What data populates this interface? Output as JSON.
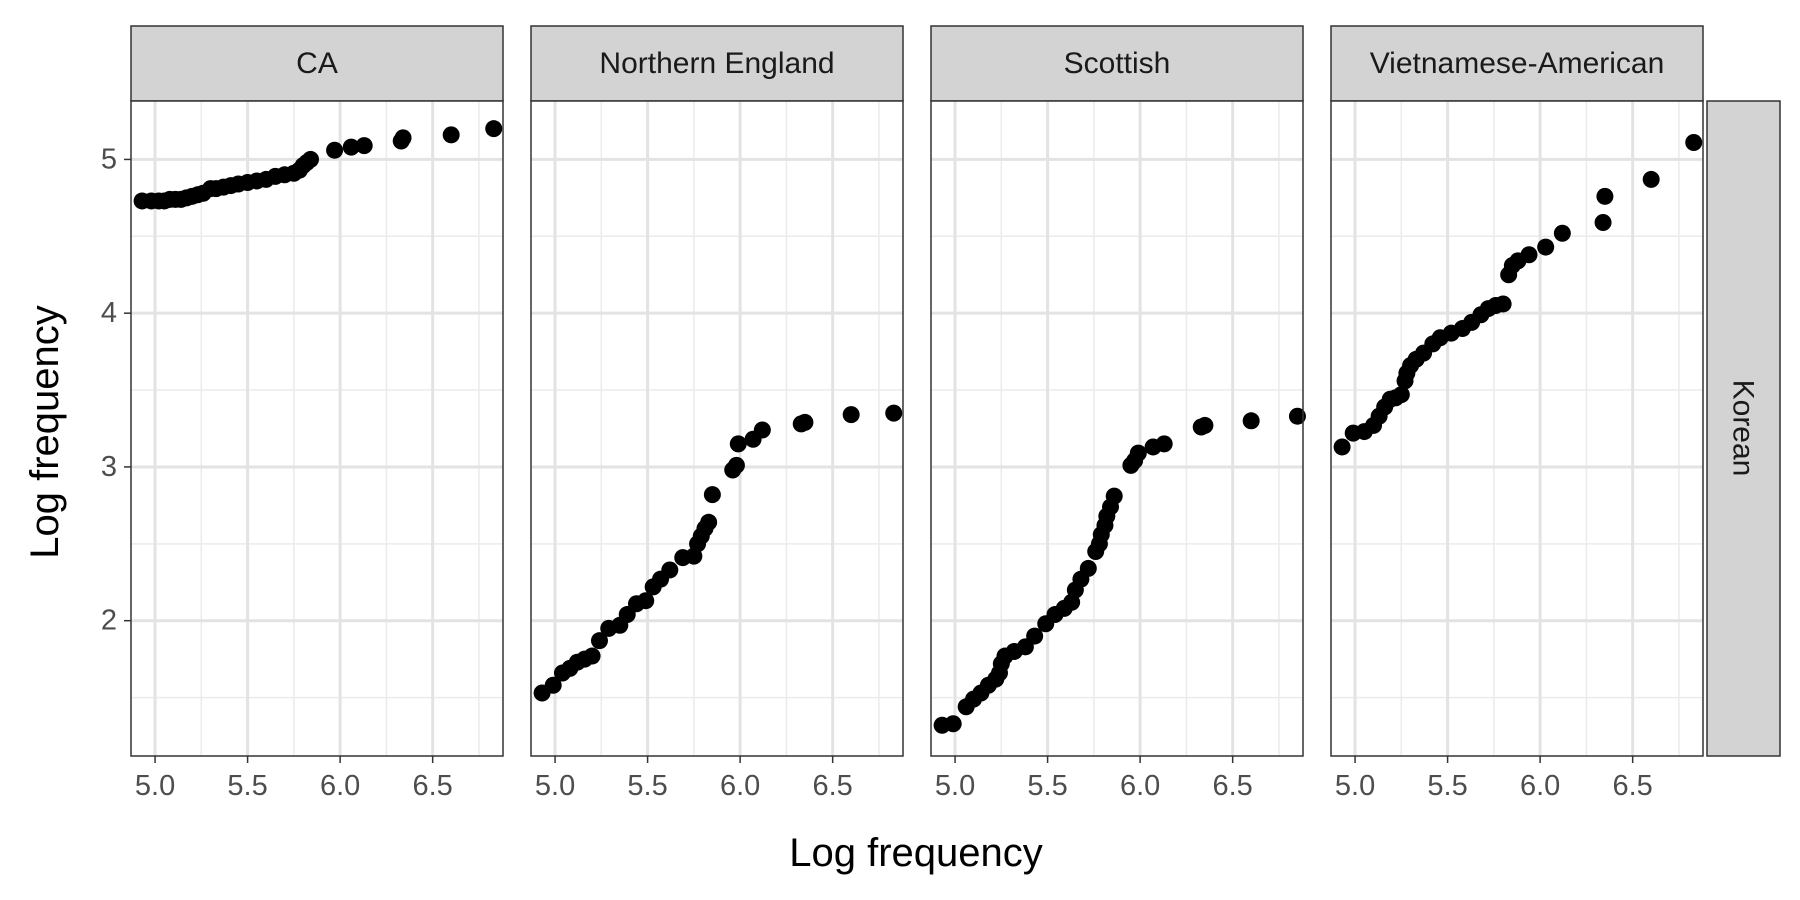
{
  "chart_data": {
    "type": "scatter",
    "xlabel": "Log frequency",
    "ylabel": "Log frequency",
    "xlim": [
      4.87,
      6.88
    ],
    "ylim": [
      1.12,
      5.38
    ],
    "x_ticks": [
      "5.0",
      "5.5",
      "6.0",
      "6.5"
    ],
    "x_tick_values": [
      5.0,
      5.5,
      6.0,
      6.5
    ],
    "y_ticks": [
      "2",
      "3",
      "4",
      "5"
    ],
    "y_tick_values": [
      2,
      3,
      4,
      5
    ],
    "grid": true,
    "facet_row_label": "Korean",
    "panels": [
      {
        "label": "CA",
        "points": [
          [
            4.93,
            4.73
          ],
          [
            4.98,
            4.73
          ],
          [
            5.02,
            4.73
          ],
          [
            5.05,
            4.73
          ],
          [
            5.08,
            4.74
          ],
          [
            5.11,
            4.74
          ],
          [
            5.14,
            4.74
          ],
          [
            5.17,
            4.75
          ],
          [
            5.2,
            4.76
          ],
          [
            5.23,
            4.77
          ],
          [
            5.26,
            4.78
          ],
          [
            5.3,
            4.81
          ],
          [
            5.33,
            4.81
          ],
          [
            5.37,
            4.82
          ],
          [
            5.41,
            4.83
          ],
          [
            5.45,
            4.84
          ],
          [
            5.5,
            4.85
          ],
          [
            5.55,
            4.86
          ],
          [
            5.6,
            4.87
          ],
          [
            5.65,
            4.89
          ],
          [
            5.7,
            4.9
          ],
          [
            5.75,
            4.91
          ],
          [
            5.78,
            4.93
          ],
          [
            5.8,
            4.96
          ],
          [
            5.82,
            4.98
          ],
          [
            5.84,
            5.0
          ],
          [
            5.97,
            5.06
          ],
          [
            6.06,
            5.08
          ],
          [
            6.13,
            5.09
          ],
          [
            6.33,
            5.12
          ],
          [
            6.34,
            5.14
          ],
          [
            6.6,
            5.16
          ],
          [
            6.83,
            5.2
          ]
        ]
      },
      {
        "label": "Northern England",
        "points": [
          [
            4.93,
            1.53
          ],
          [
            4.99,
            1.58
          ],
          [
            5.04,
            1.66
          ],
          [
            5.08,
            1.69
          ],
          [
            5.12,
            1.73
          ],
          [
            5.16,
            1.75
          ],
          [
            5.2,
            1.77
          ],
          [
            5.24,
            1.87
          ],
          [
            5.29,
            1.95
          ],
          [
            5.35,
            1.97
          ],
          [
            5.39,
            2.04
          ],
          [
            5.44,
            2.11
          ],
          [
            5.49,
            2.13
          ],
          [
            5.53,
            2.22
          ],
          [
            5.57,
            2.27
          ],
          [
            5.62,
            2.33
          ],
          [
            5.69,
            2.41
          ],
          [
            5.75,
            2.42
          ],
          [
            5.77,
            2.5
          ],
          [
            5.79,
            2.55
          ],
          [
            5.81,
            2.6
          ],
          [
            5.83,
            2.64
          ],
          [
            5.85,
            2.82
          ],
          [
            5.96,
            2.98
          ],
          [
            5.98,
            3.01
          ],
          [
            5.99,
            3.15
          ],
          [
            6.07,
            3.18
          ],
          [
            6.12,
            3.24
          ],
          [
            6.33,
            3.28
          ],
          [
            6.35,
            3.29
          ],
          [
            6.6,
            3.34
          ],
          [
            6.83,
            3.35
          ]
        ]
      },
      {
        "label": "Scottish",
        "points": [
          [
            4.93,
            1.32
          ],
          [
            4.99,
            1.33
          ],
          [
            5.06,
            1.44
          ],
          [
            5.1,
            1.49
          ],
          [
            5.14,
            1.53
          ],
          [
            5.18,
            1.58
          ],
          [
            5.22,
            1.62
          ],
          [
            5.24,
            1.66
          ],
          [
            5.25,
            1.72
          ],
          [
            5.27,
            1.77
          ],
          [
            5.32,
            1.8
          ],
          [
            5.38,
            1.83
          ],
          [
            5.43,
            1.9
          ],
          [
            5.49,
            1.98
          ],
          [
            5.54,
            2.04
          ],
          [
            5.59,
            2.08
          ],
          [
            5.63,
            2.12
          ],
          [
            5.65,
            2.2
          ],
          [
            5.68,
            2.27
          ],
          [
            5.72,
            2.34
          ],
          [
            5.76,
            2.45
          ],
          [
            5.78,
            2.5
          ],
          [
            5.79,
            2.56
          ],
          [
            5.81,
            2.62
          ],
          [
            5.82,
            2.68
          ],
          [
            5.84,
            2.74
          ],
          [
            5.86,
            2.81
          ],
          [
            5.95,
            3.01
          ],
          [
            5.97,
            3.04
          ],
          [
            5.99,
            3.09
          ],
          [
            6.07,
            3.13
          ],
          [
            6.13,
            3.15
          ],
          [
            6.33,
            3.26
          ],
          [
            6.35,
            3.27
          ],
          [
            6.6,
            3.3
          ],
          [
            6.85,
            3.33
          ]
        ]
      },
      {
        "label": "Vietnamese-American",
        "points": [
          [
            4.93,
            3.13
          ],
          [
            4.99,
            3.22
          ],
          [
            5.05,
            3.23
          ],
          [
            5.1,
            3.27
          ],
          [
            5.13,
            3.33
          ],
          [
            5.16,
            3.39
          ],
          [
            5.19,
            3.44
          ],
          [
            5.22,
            3.45
          ],
          [
            5.25,
            3.47
          ],
          [
            5.27,
            3.56
          ],
          [
            5.28,
            3.61
          ],
          [
            5.3,
            3.66
          ],
          [
            5.33,
            3.7
          ],
          [
            5.37,
            3.74
          ],
          [
            5.42,
            3.8
          ],
          [
            5.46,
            3.84
          ],
          [
            5.52,
            3.87
          ],
          [
            5.58,
            3.9
          ],
          [
            5.63,
            3.94
          ],
          [
            5.68,
            3.99
          ],
          [
            5.72,
            4.03
          ],
          [
            5.76,
            4.05
          ],
          [
            5.8,
            4.06
          ],
          [
            5.83,
            4.25
          ],
          [
            5.85,
            4.31
          ],
          [
            5.88,
            4.34
          ],
          [
            5.94,
            4.38
          ],
          [
            6.03,
            4.43
          ],
          [
            6.12,
            4.52
          ],
          [
            6.34,
            4.59
          ],
          [
            6.35,
            4.76
          ],
          [
            6.6,
            4.87
          ],
          [
            6.83,
            5.11
          ]
        ]
      }
    ]
  }
}
